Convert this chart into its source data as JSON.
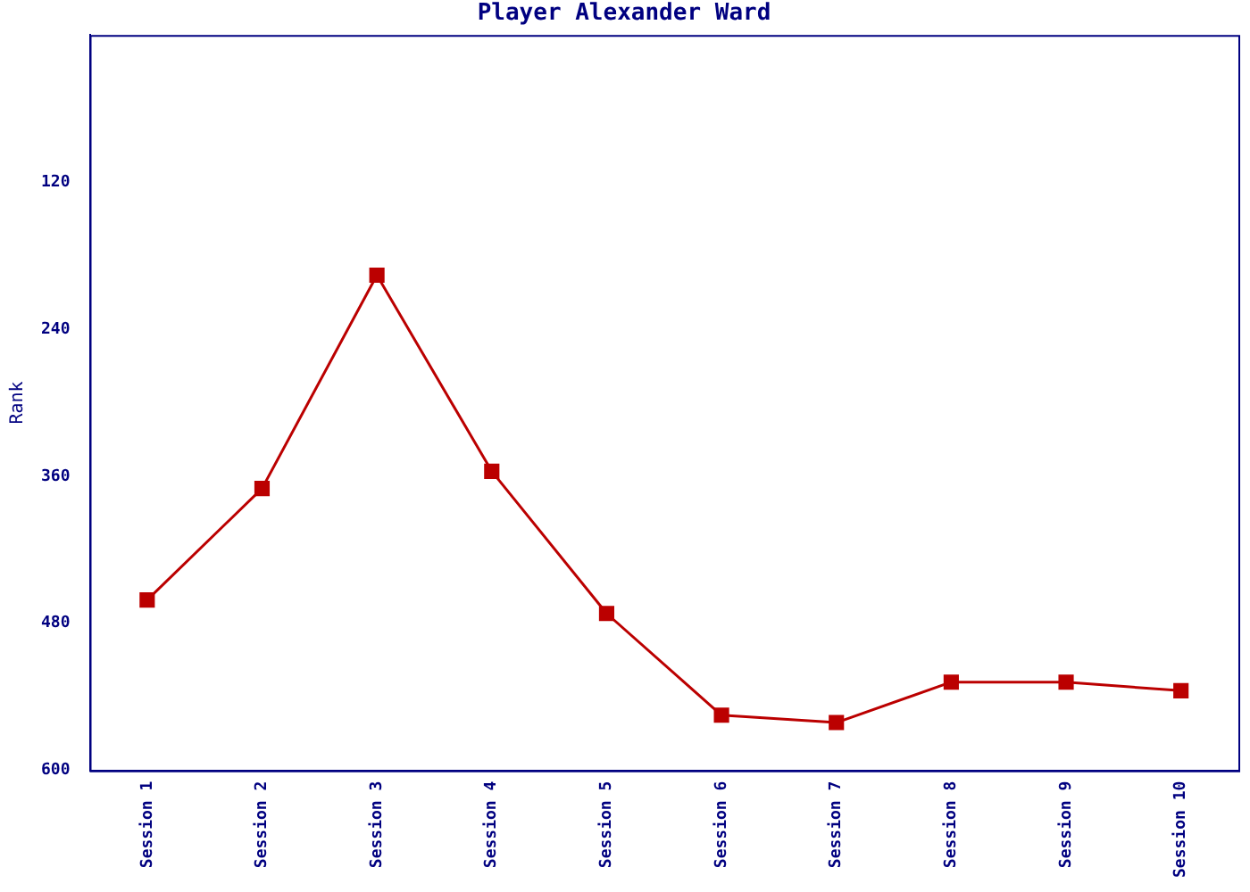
{
  "chart_data": {
    "type": "line",
    "title": "Player Alexander Ward",
    "ylabel": "Rank",
    "categories": [
      "Session 1",
      "Session 2",
      "Session 3",
      "Session 4",
      "Session 5",
      "Session 6",
      "Session 7",
      "Session 8",
      "Session 9",
      "Session 10"
    ],
    "series": [
      {
        "color": "#bb0000",
        "values": [
          461,
          370,
          196,
          356,
          472,
          555,
          561,
          528,
          528,
          535
        ]
      }
    ],
    "ylim": [
      600,
      0
    ],
    "yticks": [
      120,
      240,
      360,
      480,
      600
    ],
    "grid": false,
    "legend": false,
    "marker": "square",
    "line_style": "solid"
  }
}
